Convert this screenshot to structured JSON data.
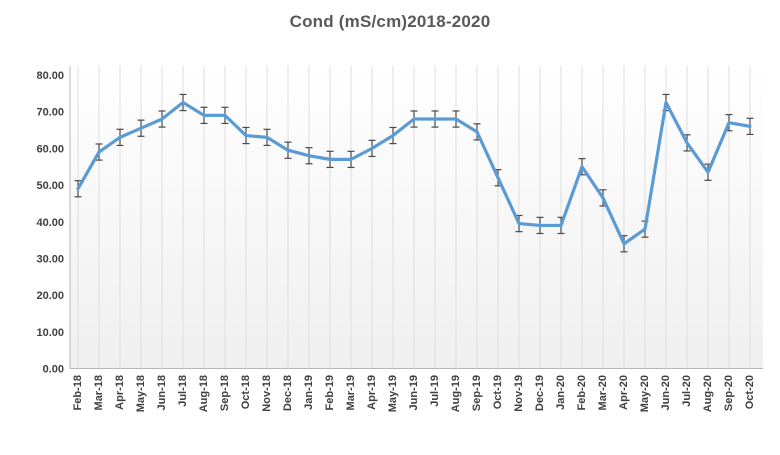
{
  "chart_data": {
    "type": "line",
    "title": "Cond (mS/cm)2018-2020",
    "xlabel": "",
    "ylabel": "",
    "legend": "none",
    "grid": "vertical-only",
    "ylim": [
      0,
      80
    ],
    "y_tick_step": 10,
    "y_tick_labels": [
      "80.00",
      "70.00",
      "60.00",
      "50.00",
      "40.00",
      "30.00",
      "20.00",
      "10.00",
      "0.00"
    ],
    "categories": [
      "Feb-18",
      "Mar-18",
      "Apr-18",
      "May-18",
      "Jun-18",
      "Jul-18",
      "Aug-18",
      "Sep-18",
      "Oct-18",
      "Nov-18",
      "Dec-18",
      "Jan-19",
      "Feb-19",
      "Mar-19",
      "Apr-19",
      "May-19",
      "Jun-19",
      "Jul-19",
      "Aug-19",
      "Sep-19",
      "Oct-19",
      "Nov-19",
      "Dec-19",
      "Jan-20",
      "Feb-20",
      "Mar-20",
      "Apr-20",
      "May-20",
      "Jun-20",
      "Jul-20",
      "Aug-20",
      "Sep-20",
      "Oct-20"
    ],
    "series": [
      {
        "name": "Cond (mS/cm)",
        "values": [
          49,
          59,
          63,
          65.5,
          68,
          72.5,
          69,
          69,
          63.5,
          63,
          59.5,
          58,
          57,
          57,
          60,
          63.5,
          68,
          68,
          68,
          64.5,
          52,
          39.5,
          39,
          39,
          55,
          46.5,
          34,
          38,
          72.5,
          61.5,
          53.5,
          67,
          66
        ],
        "error_bar_plus_minus": 2.2
      }
    ],
    "colors": {
      "line": "#5B9BD5",
      "error_bar": "#4a4a4a",
      "gridline": "#dedede",
      "axis_line": "#b7b7b7",
      "title_text": "#595959",
      "tick_text": "#404040",
      "plot_fill_top": "#ffffff",
      "plot_fill_bottom": "#efefef"
    }
  }
}
